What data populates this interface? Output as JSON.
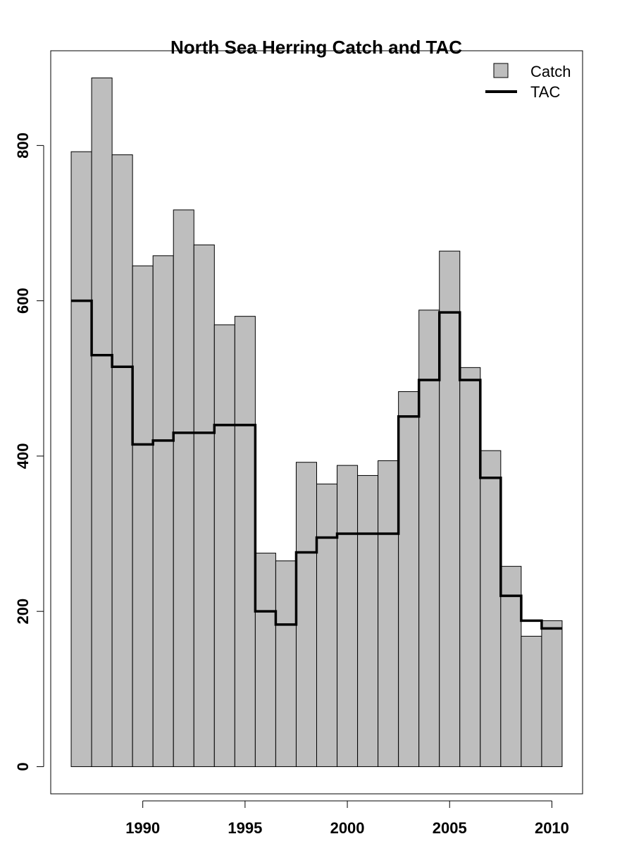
{
  "chart_data": {
    "type": "bar",
    "title": "North Sea Herring Catch and TAC",
    "xlabel": "",
    "ylabel": "",
    "years": [
      1987,
      1988,
      1989,
      1990,
      1991,
      1992,
      1993,
      1994,
      1995,
      1996,
      1997,
      1998,
      1999,
      2000,
      2001,
      2002,
      2003,
      2004,
      2005,
      2006,
      2007,
      2008,
      2009,
      2010
    ],
    "series": [
      {
        "name": "Catch",
        "kind": "bar",
        "color": "#bebebe",
        "values": [
          792,
          887,
          788,
          645,
          658,
          717,
          672,
          569,
          580,
          275,
          265,
          392,
          364,
          388,
          375,
          394,
          483,
          588,
          664,
          514,
          407,
          258,
          168,
          188
        ]
      },
      {
        "name": "TAC",
        "kind": "step-line",
        "color": "#000000",
        "values": [
          600,
          530,
          515,
          415,
          420,
          430,
          430,
          440,
          440,
          200,
          183,
          276,
          295,
          300,
          300,
          300,
          451,
          498,
          585,
          498,
          372,
          220,
          188,
          178
        ]
      }
    ],
    "xticks": [
      1990,
      1995,
      2000,
      2005,
      2010
    ],
    "yticks": [
      0,
      200,
      400,
      600,
      800
    ],
    "xlim": [
      1985.5,
      2011.5
    ],
    "ylim": [
      -35,
      922
    ],
    "legend_position": "top-right",
    "grid": false
  }
}
